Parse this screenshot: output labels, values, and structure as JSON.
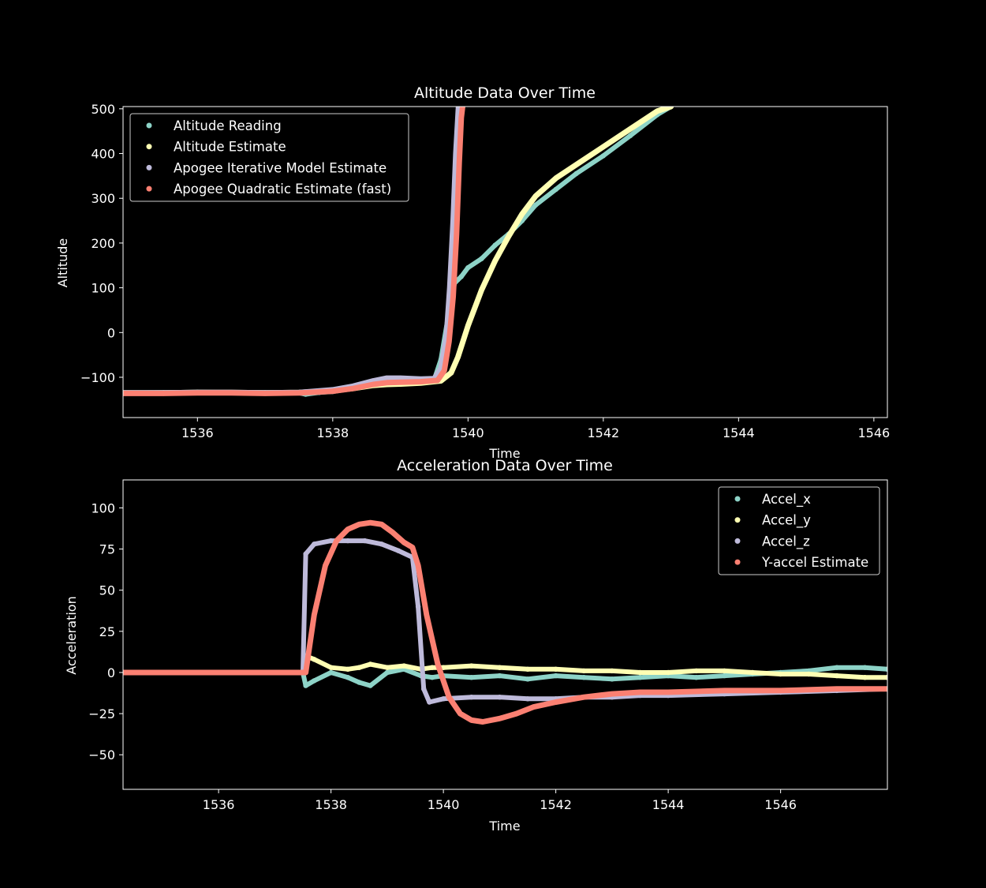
{
  "figure": {
    "background": "#000000",
    "foreground": "#ffffff"
  },
  "chart_data": [
    {
      "type": "scatter",
      "title": "Altitude Data Over Time",
      "xlabel": "Time",
      "ylabel": "Altitude",
      "xlim": [
        1534.9,
        1546.2
      ],
      "ylim": [
        -190,
        505
      ],
      "xticks": [
        1536,
        1538,
        1540,
        1542,
        1544,
        1546
      ],
      "yticks": [
        -100,
        0,
        100,
        200,
        300,
        400,
        500
      ],
      "xtick_labels": [
        "1536",
        "1538",
        "1540",
        "1542",
        "1544",
        "1546"
      ],
      "ytick_labels": [
        "−100",
        "0",
        "100",
        "200",
        "300",
        "400",
        "500"
      ],
      "grid": false,
      "legend_position": "top-left",
      "series": [
        {
          "name": "Altitude Reading",
          "color": "#8dd3c7",
          "x": [
            1534.9,
            1535.5,
            1536.0,
            1536.5,
            1537.0,
            1537.5,
            1537.6,
            1537.8,
            1538.0,
            1538.3,
            1538.6,
            1538.8,
            1539.0,
            1539.3,
            1539.5,
            1539.6,
            1539.7,
            1539.8,
            1539.85,
            1539.9,
            1540.0,
            1540.2,
            1540.4,
            1540.6,
            1540.8,
            1541.0,
            1541.3,
            1541.6,
            1542.0,
            1542.4,
            1542.8,
            1543.0
          ],
          "y": [
            -135,
            -134,
            -133,
            -134,
            -134,
            -135,
            -138,
            -134,
            -132,
            -125,
            -110,
            -104,
            -106,
            -107,
            -105,
            -60,
            30,
            110,
            118,
            125,
            145,
            165,
            195,
            220,
            250,
            285,
            320,
            355,
            395,
            440,
            487,
            505
          ]
        },
        {
          "name": "Altitude Estimate",
          "color": "#ffffb3",
          "x": [
            1534.9,
            1535.5,
            1536.0,
            1536.5,
            1537.0,
            1537.5,
            1538.0,
            1538.3,
            1538.6,
            1538.8,
            1539.0,
            1539.3,
            1539.6,
            1539.75,
            1539.85,
            1540.0,
            1540.2,
            1540.4,
            1540.6,
            1540.8,
            1541.0,
            1541.3,
            1541.6,
            1542.0,
            1542.4,
            1542.8,
            1543.0
          ],
          "y": [
            -135,
            -135,
            -134,
            -134,
            -135,
            -134,
            -130,
            -125,
            -118,
            -116,
            -115,
            -113,
            -108,
            -90,
            -55,
            15,
            95,
            160,
            215,
            265,
            305,
            345,
            375,
            415,
            455,
            495,
            505
          ]
        },
        {
          "name": "Apogee Iterative Model Estimate",
          "color": "#bebada",
          "x": [
            1534.9,
            1535.5,
            1536.0,
            1536.5,
            1537.0,
            1537.5,
            1538.0,
            1538.3,
            1538.6,
            1538.8,
            1539.0,
            1539.3,
            1539.5,
            1539.6,
            1539.68,
            1539.73,
            1539.78,
            1539.82,
            1539.86
          ],
          "y": [
            -135,
            -135,
            -134,
            -134,
            -135,
            -134,
            -128,
            -120,
            -108,
            -102,
            -102,
            -104,
            -103,
            -80,
            -10,
            100,
            250,
            400,
            505
          ]
        },
        {
          "name": "Apogee Quadratic Estimate (fast)",
          "color": "#fb8072",
          "x": [
            1534.9,
            1535.5,
            1536.0,
            1536.5,
            1537.0,
            1537.5,
            1538.0,
            1538.3,
            1538.6,
            1538.8,
            1539.0,
            1539.3,
            1539.55,
            1539.65,
            1539.72,
            1539.78,
            1539.83,
            1539.87,
            1539.9,
            1539.92
          ],
          "y": [
            -136,
            -136,
            -135,
            -135,
            -136,
            -135,
            -131,
            -125,
            -116,
            -112,
            -111,
            -110,
            -107,
            -85,
            -20,
            80,
            220,
            380,
            480,
            505
          ]
        }
      ]
    },
    {
      "type": "scatter",
      "title": "Acceleration Data Over Time",
      "xlabel": "Time",
      "ylabel": "Acceleration",
      "xlim": [
        1534.3,
        1547.9
      ],
      "ylim": [
        -71,
        117
      ],
      "xticks": [
        1536,
        1538,
        1540,
        1542,
        1544,
        1546
      ],
      "yticks": [
        -50,
        -25,
        0,
        25,
        50,
        75,
        100
      ],
      "xtick_labels": [
        "1536",
        "1538",
        "1540",
        "1542",
        "1544",
        "1546"
      ],
      "ytick_labels": [
        "−50",
        "−25",
        "0",
        "25",
        "50",
        "75",
        "100"
      ],
      "grid": false,
      "legend_position": "top-right",
      "series": [
        {
          "name": "Accel_x",
          "color": "#8dd3c7",
          "x": [
            1534.3,
            1535.0,
            1536.0,
            1537.0,
            1537.5,
            1537.55,
            1537.7,
            1538.0,
            1538.3,
            1538.5,
            1538.7,
            1539.0,
            1539.3,
            1539.6,
            1539.8,
            1540.0,
            1540.5,
            1541.0,
            1541.5,
            1542.0,
            1542.5,
            1543.0,
            1543.5,
            1544.0,
            1544.5,
            1545.0,
            1545.5,
            1546.0,
            1546.5,
            1547.0,
            1547.5,
            1547.9
          ],
          "y": [
            0,
            0,
            0,
            0,
            0,
            -8,
            -5,
            0,
            -3,
            -6,
            -8,
            0,
            2,
            -2,
            -3,
            -2,
            -3,
            -2,
            -4,
            -2,
            -3,
            -4,
            -3,
            -2,
            -3,
            -2,
            -1,
            0,
            1,
            3,
            3,
            2
          ]
        },
        {
          "name": "Accel_y",
          "color": "#ffffb3",
          "x": [
            1534.3,
            1535.0,
            1536.0,
            1537.0,
            1537.5,
            1537.55,
            1537.7,
            1538.0,
            1538.3,
            1538.5,
            1538.7,
            1539.0,
            1539.3,
            1539.6,
            1539.8,
            1540.0,
            1540.5,
            1541.0,
            1541.5,
            1542.0,
            1542.5,
            1543.0,
            1543.5,
            1544.0,
            1544.5,
            1545.0,
            1545.5,
            1546.0,
            1546.5,
            1547.0,
            1547.5,
            1547.9
          ],
          "y": [
            0,
            0,
            0,
            0,
            0,
            10,
            8,
            3,
            2,
            3,
            5,
            3,
            4,
            2,
            3,
            3,
            4,
            3,
            2,
            2,
            1,
            1,
            0,
            0,
            1,
            1,
            0,
            -1,
            -1,
            -2,
            -3,
            -3
          ]
        },
        {
          "name": "Accel_z",
          "color": "#bebada",
          "x": [
            1534.3,
            1535.0,
            1536.0,
            1537.0,
            1537.5,
            1537.55,
            1537.7,
            1538.0,
            1538.3,
            1538.6,
            1538.9,
            1539.2,
            1539.45,
            1539.55,
            1539.65,
            1539.75,
            1540.0,
            1540.5,
            1541.0,
            1541.5,
            1542.0,
            1542.5,
            1543.0,
            1543.5,
            1544.0,
            1545.0,
            1546.0,
            1547.0,
            1547.9
          ],
          "y": [
            0,
            0,
            0,
            0,
            0,
            72,
            78,
            80,
            80,
            80,
            78,
            74,
            70,
            40,
            -10,
            -18,
            -16,
            -15,
            -15,
            -16,
            -16,
            -15,
            -15,
            -14,
            -14,
            -13,
            -12,
            -11,
            -10
          ]
        },
        {
          "name": "Y-accel Estimate",
          "color": "#fb8072",
          "x": [
            1534.3,
            1535.0,
            1536.0,
            1537.0,
            1537.55,
            1537.7,
            1537.9,
            1538.1,
            1538.3,
            1538.5,
            1538.7,
            1538.9,
            1539.1,
            1539.3,
            1539.45,
            1539.55,
            1539.7,
            1539.9,
            1540.1,
            1540.3,
            1540.5,
            1540.7,
            1541.0,
            1541.3,
            1541.6,
            1542.0,
            1542.5,
            1543.0,
            1543.5,
            1544.0,
            1545.0,
            1546.0,
            1547.0,
            1547.9
          ],
          "y": [
            0,
            0,
            0,
            0,
            0,
            35,
            65,
            80,
            87,
            90,
            91,
            90,
            85,
            79,
            76,
            65,
            35,
            5,
            -15,
            -25,
            -29,
            -30,
            -28,
            -25,
            -21,
            -18,
            -15,
            -13,
            -12,
            -12,
            -11,
            -11,
            -10,
            -10
          ]
        }
      ]
    }
  ]
}
